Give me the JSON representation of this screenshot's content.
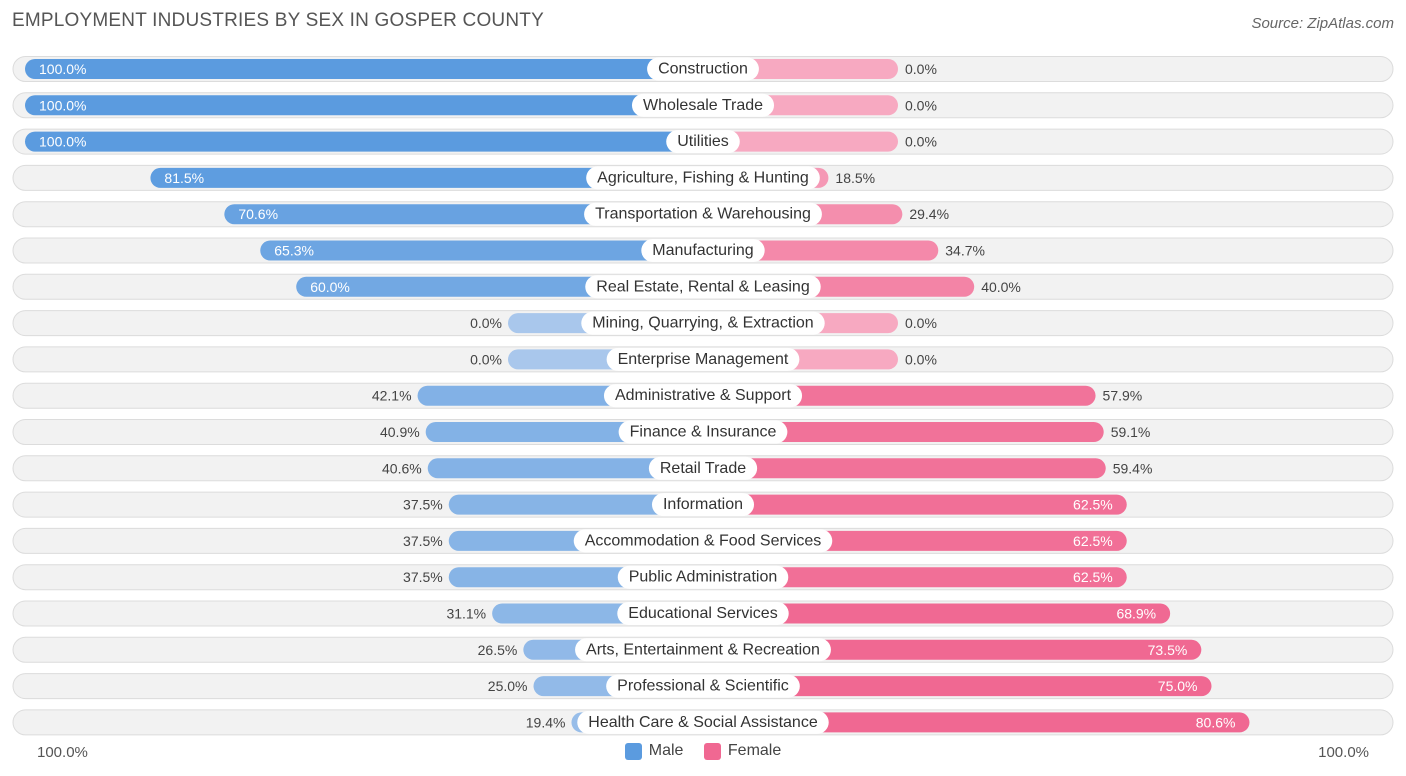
{
  "header": {
    "title": "EMPLOYMENT INDUSTRIES BY SEX IN GOSPER COUNTY",
    "source": "Source: ZipAtlas.com"
  },
  "axis": {
    "left_label": "100.0%",
    "right_label": "100.0%"
  },
  "legend": {
    "male_label": "Male",
    "female_label": "Female"
  },
  "colors": {
    "male_strong": "#5b9bdf",
    "male_light": "#a9c7ec",
    "female_strong": "#f06892",
    "female_light": "#f7a9c1",
    "row_bg": "#f2f2f2",
    "row_border": "#dcdcdc"
  },
  "chart_data": {
    "type": "bar",
    "orientation": "horizontal-diverging",
    "title": "EMPLOYMENT INDUSTRIES BY SEX IN GOSPER COUNTY",
    "xlim": [
      -100,
      100
    ],
    "categories": [
      "Construction",
      "Wholesale Trade",
      "Utilities",
      "Agriculture, Fishing & Hunting",
      "Transportation & Warehousing",
      "Manufacturing",
      "Real Estate, Rental & Leasing",
      "Mining, Quarrying, & Extraction",
      "Enterprise Management",
      "Administrative & Support",
      "Finance & Insurance",
      "Retail Trade",
      "Information",
      "Accommodation & Food Services",
      "Public Administration",
      "Educational Services",
      "Arts, Entertainment & Recreation",
      "Professional & Scientific",
      "Health Care & Social Assistance"
    ],
    "series": [
      {
        "name": "Male",
        "values": [
          100.0,
          100.0,
          100.0,
          81.5,
          70.6,
          65.3,
          60.0,
          0.0,
          0.0,
          42.1,
          40.9,
          40.6,
          37.5,
          37.5,
          37.5,
          31.1,
          26.5,
          25.0,
          19.4
        ],
        "labels": [
          "100.0%",
          "100.0%",
          "100.0%",
          "81.5%",
          "70.6%",
          "65.3%",
          "60.0%",
          "0.0%",
          "0.0%",
          "42.1%",
          "40.9%",
          "40.6%",
          "37.5%",
          "37.5%",
          "37.5%",
          "31.1%",
          "26.5%",
          "25.0%",
          "19.4%"
        ]
      },
      {
        "name": "Female",
        "values": [
          0.0,
          0.0,
          0.0,
          18.5,
          29.4,
          34.7,
          40.0,
          0.0,
          0.0,
          57.9,
          59.1,
          59.4,
          62.5,
          62.5,
          62.5,
          68.9,
          73.5,
          75.0,
          80.6
        ],
        "labels": [
          "0.0%",
          "0.0%",
          "0.0%",
          "18.5%",
          "29.4%",
          "34.7%",
          "40.0%",
          "0.0%",
          "0.0%",
          "57.9%",
          "59.1%",
          "59.4%",
          "62.5%",
          "62.5%",
          "62.5%",
          "68.9%",
          "73.5%",
          "75.0%",
          "80.6%"
        ]
      }
    ],
    "legend_position": "bottom-center"
  }
}
